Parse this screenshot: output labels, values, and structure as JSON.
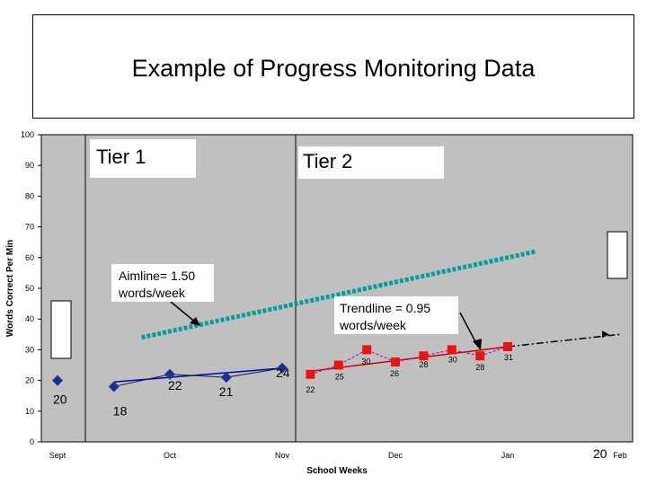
{
  "slide": {
    "title": "Example of Progress Monitoring Data"
  },
  "chart_data": {
    "type": "line",
    "title": "",
    "xlabel": "School Weeks",
    "ylabel": "Words Correct Per Min",
    "ylim": [
      0,
      100
    ],
    "yticks": [
      0,
      10,
      20,
      30,
      40,
      50,
      60,
      70,
      80,
      90,
      100
    ],
    "x_tick_labels": [
      "Sept",
      "Oct",
      "Nov",
      "Dec",
      "Jan",
      "Feb"
    ],
    "grid": false,
    "background": "#c0c0c0",
    "phase_labels": [
      "Tier 1",
      "Tier 2"
    ],
    "series": [
      {
        "marker": "diamond",
        "color": "#1f2f8f",
        "points": [
          {
            "x": "Sept",
            "y": 20,
            "label": "20"
          },
          {
            "x": "Sept+2w",
            "y": 18,
            "label": "18"
          },
          {
            "x": "Oct",
            "y": 22,
            "label": "22"
          },
          {
            "x": "Oct+2w",
            "y": 21,
            "label": "21"
          },
          {
            "x": "Nov",
            "y": 24,
            "label": "24"
          }
        ]
      },
      {
        "marker": "square",
        "color": "#ee1111",
        "points": [
          {
            "x": "Nov+1w",
            "y": 22,
            "label": "22"
          },
          {
            "x": "Nov+2w",
            "y": 25,
            "label": "25"
          },
          {
            "x": "Nov+3w",
            "y": 30,
            "label": "30"
          },
          {
            "x": "Dec",
            "y": 26,
            "label": "26"
          },
          {
            "x": "Dec+1w",
            "y": 28,
            "label": "28"
          },
          {
            "x": "Dec+2w",
            "y": 30,
            "label": "30"
          },
          {
            "x": "Dec+3w",
            "y": 28,
            "label": "28"
          },
          {
            "x": "Jan",
            "y": 31,
            "label": "31"
          }
        ]
      }
    ],
    "trend_lines": [
      {
        "x": [
          "Sept+2w",
          "Nov"
        ],
        "y": [
          19.5,
          24
        ],
        "color": "#0000cc"
      },
      {
        "x": [
          "Nov+1w",
          "Jan"
        ],
        "y": [
          23,
          31
        ],
        "color": "#cc0000"
      },
      {
        "x": [
          "Jan",
          "Feb"
        ],
        "y": [
          31,
          35
        ],
        "color": "#000000",
        "style": "dash-dot"
      }
    ],
    "aimline": {
      "x": [
        "Oct-1w",
        "Jan+1w"
      ],
      "y": [
        34,
        62
      ],
      "color": "#00a0a0"
    },
    "annotations": {
      "aimline_callout": [
        "Aimline= 1.50",
        "words/week"
      ],
      "trend_callout": [
        "Trendline = 0.95",
        "words/week"
      ],
      "corner_value": "20"
    }
  }
}
